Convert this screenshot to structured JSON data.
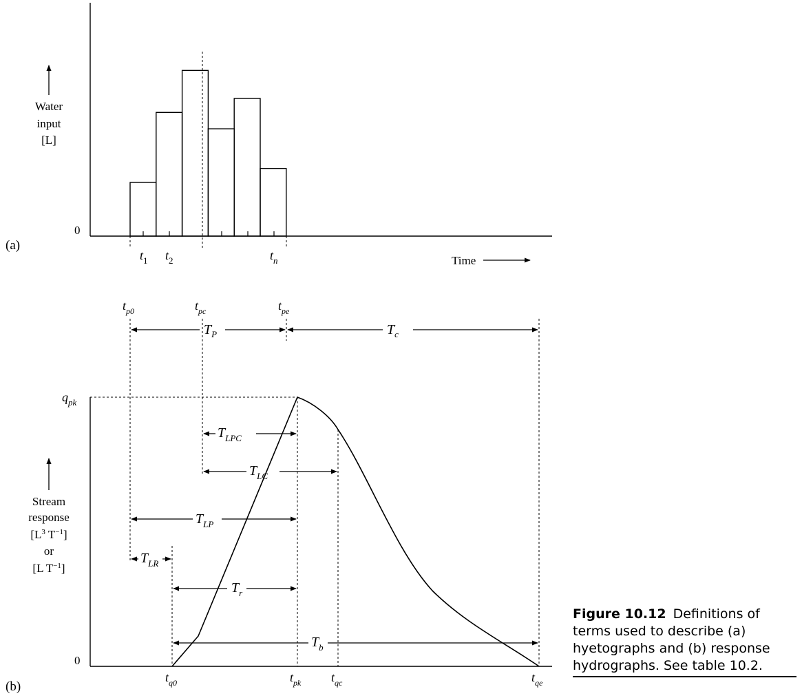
{
  "panel_a": {
    "label": "(a)",
    "y_label_lines": [
      "Water",
      "input",
      "[L]"
    ],
    "zero": "0",
    "x_label": "Time",
    "tick_labels": [
      {
        "base": "t",
        "sub": "1"
      },
      {
        "base": "t",
        "sub": "2"
      },
      {
        "base": "t",
        "sub": "n"
      }
    ],
    "bars": [
      0.23,
      0.53,
      0.71,
      0.46,
      0.59,
      0.29
    ]
  },
  "panel_b": {
    "label": "(b)",
    "y_label_lines": [
      "Stream",
      "response"
    ],
    "unit1": {
      "a": "[L",
      "sup": "3",
      "b": " T",
      "sup2": "−1",
      "c": "]"
    },
    "or": "or",
    "unit2": {
      "a": "[L T",
      "sup": "−1",
      "c": "]"
    },
    "zero": "0",
    "qpk": {
      "base": "q",
      "sub": "pk"
    },
    "top_labels": [
      {
        "base": "t",
        "sub": "p0"
      },
      {
        "base": "t",
        "sub": "pc"
      },
      {
        "base": "t",
        "sub": "pe"
      }
    ],
    "bottom_labels": [
      {
        "base": "t",
        "sub": "q0"
      },
      {
        "base": "t",
        "sub": "pk"
      },
      {
        "base": "t",
        "sub": "qc"
      },
      {
        "base": "t",
        "sub": "qe"
      }
    ],
    "intervals": {
      "TP": {
        "base": "T",
        "sub": "P"
      },
      "Tc": {
        "base": "T",
        "sub": "c"
      },
      "TLPC": {
        "base": "T",
        "sub": "LPC"
      },
      "TLC": {
        "base": "T",
        "sub": "LC"
      },
      "TLP": {
        "base": "T",
        "sub": "LP"
      },
      "TLR": {
        "base": "T",
        "sub": "LR"
      },
      "Tr": {
        "base": "T",
        "sub": "r"
      },
      "Tb": {
        "base": "T",
        "sub": "b"
      }
    }
  },
  "caption": {
    "number": "Figure 10.12",
    "text": "Definitions of terms used to describe (a) hyetographs and (b) response hydrographs. See table 10.2."
  }
}
